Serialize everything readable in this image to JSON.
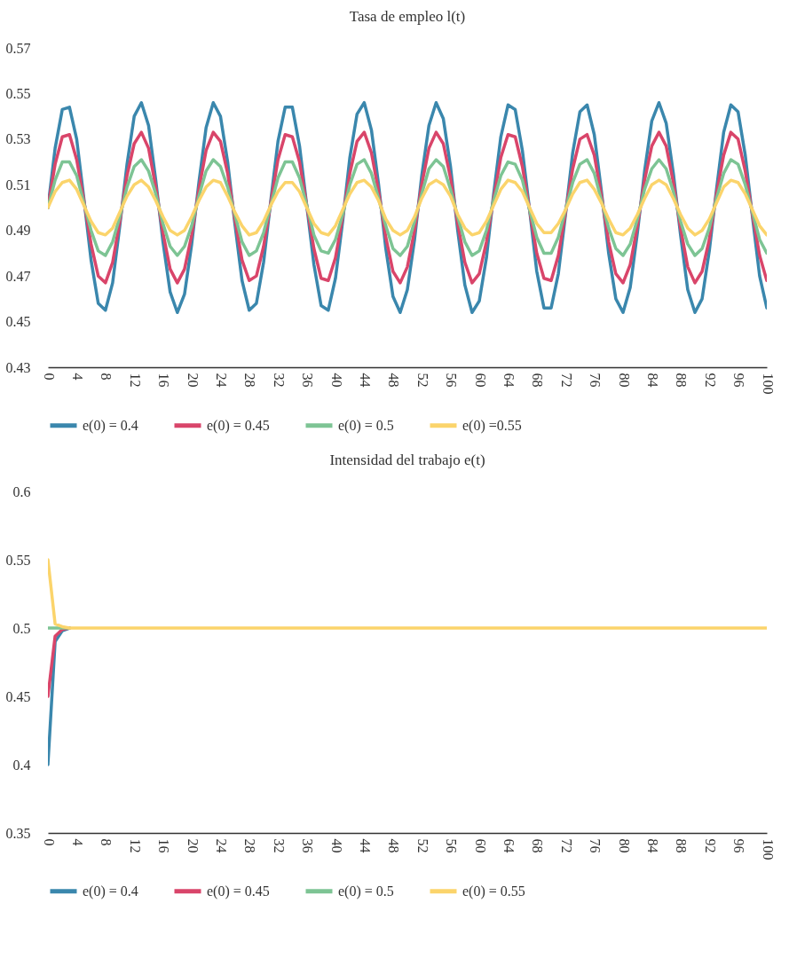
{
  "chart_data": [
    {
      "type": "line",
      "title": "Tasa de empleo l(t)",
      "x": [
        0,
        1,
        2,
        3,
        4,
        5,
        6,
        7,
        8,
        9,
        10,
        11,
        12,
        13,
        14,
        15,
        16,
        17,
        18,
        19,
        20,
        21,
        22,
        23,
        24,
        25,
        26,
        27,
        28,
        29,
        30,
        31,
        32,
        33,
        34,
        35,
        36,
        37,
        38,
        39,
        40,
        41,
        42,
        43,
        44,
        45,
        46,
        47,
        48,
        49,
        50,
        51,
        52,
        53,
        54,
        55,
        56,
        57,
        58,
        59,
        60,
        61,
        62,
        63,
        64,
        65,
        66,
        67,
        68,
        69,
        70,
        71,
        72,
        73,
        74,
        75,
        76,
        77,
        78,
        79,
        80,
        81,
        82,
        83,
        84,
        85,
        86,
        87,
        88,
        89,
        90,
        91,
        92,
        93,
        94,
        95,
        96,
        97,
        98,
        99,
        100
      ],
      "series": [
        {
          "name": "e(0) = 0.4",
          "color": "#3a87ad",
          "values": [
            0.5,
            0.526,
            0.543,
            0.544,
            0.53,
            0.504,
            0.477,
            0.458,
            0.455,
            0.467,
            0.492,
            0.519,
            0.54,
            0.546,
            0.536,
            0.512,
            0.485,
            0.463,
            0.454,
            0.462,
            0.484,
            0.511,
            0.535,
            0.546,
            0.54,
            0.52,
            0.493,
            0.468,
            0.455,
            0.458,
            0.476,
            0.503,
            0.529,
            0.544,
            0.544,
            0.527,
            0.501,
            0.475,
            0.457,
            0.455,
            0.469,
            0.494,
            0.522,
            0.541,
            0.546,
            0.534,
            0.51,
            0.482,
            0.461,
            0.454,
            0.464,
            0.486,
            0.514,
            0.536,
            0.546,
            0.539,
            0.518,
            0.49,
            0.466,
            0.454,
            0.459,
            0.478,
            0.506,
            0.531,
            0.545,
            0.543,
            0.525,
            0.499,
            0.472,
            0.456,
            0.456,
            0.471,
            0.497,
            0.524,
            0.542,
            0.545,
            0.532,
            0.507,
            0.48,
            0.46,
            0.454,
            0.465,
            0.489,
            0.516,
            0.538,
            0.546,
            0.537,
            0.515,
            0.488,
            0.464,
            0.454,
            0.46,
            0.481,
            0.508,
            0.533,
            0.545,
            0.542,
            0.523,
            0.496,
            0.47,
            0.456
          ]
        },
        {
          "name": "e(0) = 0.45",
          "color": "#d9456a",
          "values": [
            0.5,
            0.519,
            0.531,
            0.532,
            0.521,
            0.503,
            0.484,
            0.47,
            0.467,
            0.476,
            0.494,
            0.514,
            0.528,
            0.533,
            0.526,
            0.509,
            0.489,
            0.473,
            0.467,
            0.473,
            0.488,
            0.508,
            0.525,
            0.533,
            0.529,
            0.515,
            0.495,
            0.477,
            0.468,
            0.47,
            0.483,
            0.502,
            0.521,
            0.532,
            0.531,
            0.52,
            0.501,
            0.482,
            0.469,
            0.468,
            0.478,
            0.496,
            0.515,
            0.529,
            0.533,
            0.524,
            0.507,
            0.487,
            0.472,
            0.467,
            0.474,
            0.49,
            0.51,
            0.526,
            0.533,
            0.528,
            0.513,
            0.493,
            0.476,
            0.467,
            0.471,
            0.485,
            0.504,
            0.522,
            0.532,
            0.531,
            0.518,
            0.499,
            0.48,
            0.469,
            0.468,
            0.479,
            0.498,
            0.517,
            0.53,
            0.532,
            0.523,
            0.505,
            0.485,
            0.471,
            0.467,
            0.475,
            0.492,
            0.512,
            0.527,
            0.533,
            0.527,
            0.511,
            0.491,
            0.474,
            0.467,
            0.472,
            0.486,
            0.506,
            0.523,
            0.533,
            0.53,
            0.516,
            0.497,
            0.479,
            0.468
          ]
        },
        {
          "name": "e(0) = 0.5",
          "color": "#7dc494",
          "values": [
            0.5,
            0.512,
            0.52,
            0.52,
            0.514,
            0.502,
            0.49,
            0.481,
            0.479,
            0.485,
            0.496,
            0.509,
            0.518,
            0.521,
            0.516,
            0.506,
            0.493,
            0.483,
            0.479,
            0.483,
            0.492,
            0.505,
            0.516,
            0.521,
            0.518,
            0.509,
            0.497,
            0.485,
            0.479,
            0.481,
            0.489,
            0.501,
            0.513,
            0.52,
            0.52,
            0.513,
            0.501,
            0.488,
            0.481,
            0.48,
            0.486,
            0.497,
            0.51,
            0.519,
            0.521,
            0.515,
            0.504,
            0.492,
            0.482,
            0.479,
            0.483,
            0.494,
            0.506,
            0.517,
            0.521,
            0.518,
            0.508,
            0.496,
            0.485,
            0.479,
            0.481,
            0.49,
            0.503,
            0.514,
            0.52,
            0.519,
            0.512,
            0.499,
            0.487,
            0.48,
            0.48,
            0.487,
            0.499,
            0.511,
            0.519,
            0.521,
            0.515,
            0.503,
            0.491,
            0.482,
            0.479,
            0.484,
            0.495,
            0.508,
            0.517,
            0.521,
            0.517,
            0.507,
            0.494,
            0.484,
            0.479,
            0.482,
            0.491,
            0.504,
            0.515,
            0.521,
            0.519,
            0.51,
            0.498,
            0.486,
            0.48
          ]
        },
        {
          "name": "e(0) =0.55",
          "color": "#fbd46b",
          "values": [
            0.5,
            0.507,
            0.511,
            0.512,
            0.508,
            0.501,
            0.494,
            0.489,
            0.488,
            0.491,
            0.498,
            0.505,
            0.51,
            0.512,
            0.509,
            0.503,
            0.496,
            0.49,
            0.488,
            0.49,
            0.496,
            0.503,
            0.509,
            0.512,
            0.511,
            0.505,
            0.498,
            0.492,
            0.488,
            0.489,
            0.494,
            0.501,
            0.507,
            0.511,
            0.511,
            0.507,
            0.5,
            0.493,
            0.489,
            0.488,
            0.492,
            0.499,
            0.506,
            0.511,
            0.512,
            0.509,
            0.503,
            0.495,
            0.49,
            0.488,
            0.49,
            0.496,
            0.504,
            0.51,
            0.512,
            0.51,
            0.505,
            0.497,
            0.491,
            0.488,
            0.489,
            0.494,
            0.501,
            0.508,
            0.512,
            0.511,
            0.507,
            0.5,
            0.493,
            0.489,
            0.489,
            0.493,
            0.499,
            0.506,
            0.511,
            0.512,
            0.508,
            0.502,
            0.495,
            0.489,
            0.488,
            0.491,
            0.497,
            0.504,
            0.51,
            0.512,
            0.51,
            0.504,
            0.497,
            0.491,
            0.488,
            0.49,
            0.495,
            0.502,
            0.509,
            0.512,
            0.511,
            0.506,
            0.499,
            0.492,
            0.488
          ]
        }
      ],
      "xlim": [
        0,
        100
      ],
      "xticks": [
        0,
        4,
        8,
        12,
        16,
        20,
        24,
        28,
        32,
        36,
        40,
        44,
        48,
        52,
        56,
        60,
        64,
        68,
        72,
        76,
        80,
        84,
        88,
        92,
        96,
        100
      ],
      "ylim": [
        0.43,
        0.57
      ],
      "yticks": [
        0.43,
        0.45,
        0.47,
        0.49,
        0.51,
        0.53,
        0.55,
        0.57
      ],
      "legend": "bottom"
    },
    {
      "type": "line",
      "title": "Intensidad del trabajo e(t)",
      "x": [
        0,
        1,
        2,
        3,
        4,
        5,
        6,
        7,
        8,
        9,
        10,
        11,
        12,
        13,
        14,
        15,
        16,
        17,
        18,
        19,
        20,
        21,
        22,
        23,
        24,
        25,
        26,
        27,
        28,
        29,
        30,
        31,
        32,
        33,
        34,
        35,
        36,
        37,
        38,
        39,
        40,
        41,
        42,
        43,
        44,
        45,
        46,
        47,
        48,
        49,
        50,
        51,
        52,
        53,
        54,
        55,
        56,
        57,
        58,
        59,
        60,
        61,
        62,
        63,
        64,
        65,
        66,
        67,
        68,
        69,
        70,
        71,
        72,
        73,
        74,
        75,
        76,
        77,
        78,
        79,
        80,
        81,
        82,
        83,
        84,
        85,
        86,
        87,
        88,
        89,
        90,
        91,
        92,
        93,
        94,
        95,
        96,
        97,
        98,
        99,
        100
      ],
      "series": [
        {
          "name": "e(0) = 0.4",
          "color": "#3a87ad",
          "x": [
            0,
            1,
            2,
            3
          ],
          "values": [
            0.4,
            0.49,
            0.498,
            0.5
          ]
        },
        {
          "name": "e(0) = 0.45",
          "color": "#d9456a",
          "x": [
            0,
            1,
            2,
            3
          ],
          "values": [
            0.45,
            0.494,
            0.499,
            0.5
          ]
        },
        {
          "name": "e(0) = 0.5",
          "color": "#7dc494",
          "x": [
            0,
            1,
            2,
            3
          ],
          "values": [
            0.5,
            0.5,
            0.5,
            0.5
          ]
        },
        {
          "name": "e(0) = 0.55",
          "color": "#fbd46b",
          "values": [
            0.55,
            0.503,
            0.501,
            0.5,
            0.5,
            0.5,
            0.5,
            0.5,
            0.5,
            0.5,
            0.5,
            0.5,
            0.5,
            0.5,
            0.5,
            0.5,
            0.5,
            0.5,
            0.5,
            0.5,
            0.5,
            0.5,
            0.5,
            0.5,
            0.5,
            0.5,
            0.5,
            0.5,
            0.5,
            0.5,
            0.5,
            0.5,
            0.5,
            0.5,
            0.5,
            0.5,
            0.5,
            0.5,
            0.5,
            0.5,
            0.5,
            0.5,
            0.5,
            0.5,
            0.5,
            0.5,
            0.5,
            0.5,
            0.5,
            0.5,
            0.5,
            0.5,
            0.5,
            0.5,
            0.5,
            0.5,
            0.5,
            0.5,
            0.5,
            0.5,
            0.5,
            0.5,
            0.5,
            0.5,
            0.5,
            0.5,
            0.5,
            0.5,
            0.5,
            0.5,
            0.5,
            0.5,
            0.5,
            0.5,
            0.5,
            0.5,
            0.5,
            0.5,
            0.5,
            0.5,
            0.5,
            0.5,
            0.5,
            0.5,
            0.5,
            0.5,
            0.5,
            0.5,
            0.5,
            0.5,
            0.5,
            0.5,
            0.5,
            0.5,
            0.5,
            0.5,
            0.5,
            0.5,
            0.5,
            0.5,
            0.5
          ]
        }
      ],
      "xlim": [
        0,
        100
      ],
      "xticks": [
        0,
        4,
        8,
        12,
        16,
        20,
        24,
        28,
        32,
        36,
        40,
        44,
        48,
        52,
        56,
        60,
        64,
        68,
        72,
        76,
        80,
        84,
        88,
        92,
        96,
        100
      ],
      "ylim": [
        0.35,
        0.6
      ],
      "yticks": [
        0.35,
        0.4,
        0.45,
        0.5,
        0.55,
        0.6
      ],
      "legend": "bottom"
    }
  ]
}
